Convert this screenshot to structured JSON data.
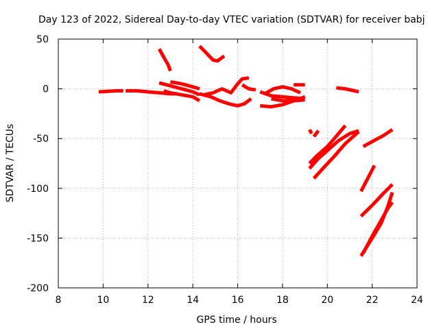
{
  "chart_data": {
    "type": "line",
    "title": "Day 123 of 2022, Sidereal Day-to-day VTEC variation (SDTVAR) for receiver babj",
    "xlabel": "GPS time / hours",
    "ylabel": "SDTVAR / TECUs",
    "xlim": [
      8,
      24
    ],
    "ylim": [
      -200,
      50
    ],
    "xticks": [
      8,
      10,
      12,
      14,
      16,
      18,
      20,
      22,
      24
    ],
    "yticks": [
      -200,
      -150,
      -100,
      -50,
      0,
      50
    ],
    "grid": true,
    "color": "#ff0000",
    "series": [
      {
        "x": [
          9.8,
          10.2,
          10.6,
          10.9
        ],
        "y": [
          -3,
          -2.5,
          -2,
          -2
        ]
      },
      {
        "x": [
          11.0,
          11.5,
          12.0,
          12.5,
          13.0,
          13.3
        ],
        "y": [
          -2,
          -2,
          -3,
          -4,
          -5,
          -5
        ]
      },
      {
        "x": [
          12.5,
          12.7,
          12.9,
          13.0
        ],
        "y": [
          40,
          32,
          24,
          18
        ]
      },
      {
        "x": [
          12.5,
          13.0,
          13.5,
          14.0,
          14.3
        ],
        "y": [
          6,
          3,
          0,
          -3,
          -6
        ]
      },
      {
        "x": [
          12.7,
          13.0,
          13.5,
          14.0,
          14.3
        ],
        "y": [
          -2,
          -4,
          -6,
          -8,
          -12
        ]
      },
      {
        "x": [
          13.0,
          13.5,
          14.0,
          14.3
        ],
        "y": [
          7,
          5,
          2,
          0
        ]
      },
      {
        "x": [
          14.3,
          14.6,
          14.9,
          15.1,
          15.4
        ],
        "y": [
          43,
          36,
          29,
          28,
          33
        ]
      },
      {
        "x": [
          14.3,
          14.8,
          15.2,
          15.6,
          16.0,
          16.3,
          16.6
        ],
        "y": [
          -5,
          -8,
          -12,
          -15,
          -17,
          -15,
          -10
        ]
      },
      {
        "x": [
          14.5,
          14.9,
          15.3,
          15.7,
          16.0,
          16.2,
          16.5
        ],
        "y": [
          -6,
          -4,
          0,
          -4,
          5,
          10,
          11
        ]
      },
      {
        "x": [
          16.2,
          16.5,
          16.8
        ],
        "y": [
          4,
          0,
          -1
        ]
      },
      {
        "x": [
          17.0,
          17.5,
          18.0,
          18.5,
          19.0
        ],
        "y": [
          -17,
          -18,
          -16,
          -12,
          -8
        ]
      },
      {
        "x": [
          17.0,
          17.5,
          18.0,
          18.5,
          19.0
        ],
        "y": [
          -3,
          -7,
          -8,
          -9,
          -10
        ]
      },
      {
        "x": [
          17.2,
          17.6,
          18.0,
          18.4,
          18.8
        ],
        "y": [
          -5,
          0,
          2,
          0,
          -4
        ]
      },
      {
        "x": [
          17.5,
          18.0,
          18.5,
          19.0
        ],
        "y": [
          -10,
          -12,
          -12,
          -11
        ]
      },
      {
        "x": [
          18.5,
          18.8,
          19.0
        ],
        "y": [
          4,
          4,
          4
        ]
      },
      {
        "x": [
          19.2,
          19.3
        ],
        "y": [
          -41,
          -45
        ]
      },
      {
        "x": [
          19.4,
          19.6
        ],
        "y": [
          -48,
          -42
        ]
      },
      {
        "x": [
          19.2,
          19.5,
          20.0,
          20.5,
          20.8
        ],
        "y": [
          -75,
          -68,
          -58,
          -45,
          -37
        ]
      },
      {
        "x": [
          19.2,
          19.6,
          20.0,
          20.5,
          21.0,
          21.4
        ],
        "y": [
          -80,
          -70,
          -62,
          -52,
          -45,
          -42
        ]
      },
      {
        "x": [
          19.4,
          19.8,
          20.3,
          20.8,
          21.4
        ],
        "y": [
          -90,
          -80,
          -68,
          -55,
          -43
        ]
      },
      {
        "x": [
          20.4,
          20.8,
          21.2,
          21.4
        ],
        "y": [
          1,
          0,
          -2,
          -3
        ]
      },
      {
        "x": [
          21.5,
          21.8,
          22.1
        ],
        "y": [
          -103,
          -90,
          -77
        ]
      },
      {
        "x": [
          21.6,
          22.0,
          22.5,
          22.9
        ],
        "y": [
          -58,
          -53,
          -47,
          -41
        ]
      },
      {
        "x": [
          21.5,
          22.0,
          22.5,
          22.9
        ],
        "y": [
          -128,
          -117,
          -105,
          -96
        ]
      },
      {
        "x": [
          21.5,
          22.0,
          22.4,
          22.7,
          22.9
        ],
        "y": [
          -168,
          -150,
          -135,
          -118,
          -104
        ]
      },
      {
        "x": [
          21.6,
          22.0,
          22.4,
          22.7,
          22.9
        ],
        "y": [
          -165,
          -148,
          -132,
          -120,
          -114
        ]
      }
    ]
  }
}
